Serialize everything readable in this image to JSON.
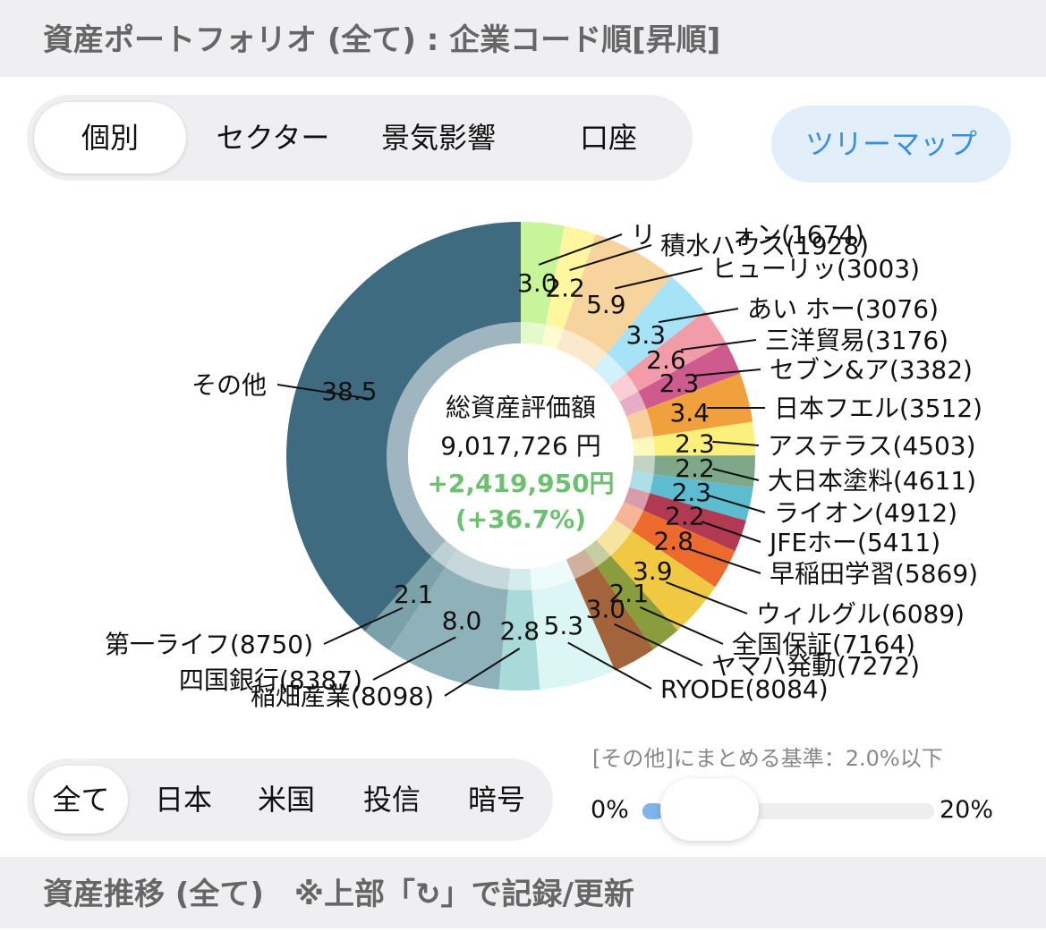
{
  "header": {
    "title": "資産ポートフォリオ (全て) : 企業コード順[昇順]"
  },
  "view_tabs": [
    "個別",
    "セクター",
    "景気影響",
    "口座"
  ],
  "treemap_button": "ツリーマップ",
  "center": {
    "label": "総資産評価額",
    "total": "9,017,726 円",
    "gain": "+2,419,950円",
    "gain_pct": "(+36.7%)"
  },
  "chart_data": {
    "type": "donut",
    "categories": [
      "リ　　　ォン(1674)",
      "積水ハウス(1928)",
      "ヒューリッ(3003)",
      "あい ホー(3076)",
      "三洋貿易(3176)",
      "セブン&ア(3382)",
      "日本フエル(3512)",
      "アステラス(4503)",
      "大日本塗料(4611)",
      "ライオン(4912)",
      "JFEホー(5411)",
      "早稲田学習(5869)",
      "ウィルグル(6089)",
      "全国保証(7164)",
      "ヤマハ発動(7272)",
      "RYODE(8084)",
      "稲畑産業(8098)",
      "四国銀行(8387)",
      "第一ライフ(8750)",
      "その他"
    ],
    "values": [
      3.0,
      2.2,
      5.9,
      3.3,
      2.6,
      2.3,
      3.4,
      2.3,
      2.2,
      2.3,
      2.2,
      2.8,
      3.9,
      2.1,
      3.0,
      5.3,
      2.8,
      8.0,
      2.1,
      38.5
    ],
    "value_labels": [
      "3.0",
      "2.2",
      "5.9",
      "3.3",
      "2.6",
      "2.3",
      "3.4",
      "2.3",
      "2.2",
      "2.3",
      "2.2",
      "2.8",
      "3.9",
      "2.1",
      "3.0",
      "5.3",
      "2.8",
      "8.0",
      "2.1",
      "38.5"
    ],
    "colors": [
      "#c9f59a",
      "#fff7a0",
      "#f7d39d",
      "#a6e3f7",
      "#f39ca9",
      "#cf5a8e",
      "#f0a13d",
      "#fbf07c",
      "#7fa88b",
      "#5dbccf",
      "#b13a52",
      "#ec6b2c",
      "#f1c842",
      "#8b9c3d",
      "#a3633b",
      "#dcf6f6",
      "#a9d9d9",
      "#8fb1b9",
      "#7ba2a8",
      "#3e6b80"
    ]
  },
  "market_tabs": [
    "全て",
    "日本",
    "米国",
    "投信",
    "暗号"
  ],
  "slider": {
    "caption": "[その他]にまとめる基準：2.0%以下",
    "min_label": "0%",
    "max_label": "20%"
  },
  "footer": {
    "title": "資産推移 (全て)　※上部「↻」で記録/更新"
  }
}
